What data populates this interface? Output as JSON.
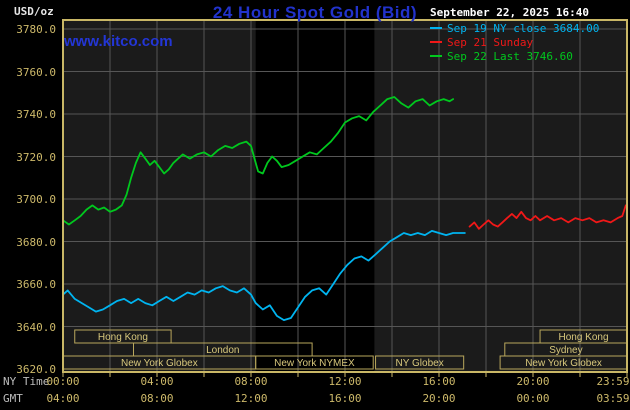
{
  "header": {
    "units_label": "USD/oz",
    "title": "24 Hour Spot Gold (Bid)",
    "datetime": "September 22, 2025 16:40",
    "watermark": "www.kitco.com"
  },
  "legend": [
    {
      "label": "Sep 19 NY close 3684.00",
      "color": "#00b4f0"
    },
    {
      "label": "Sep 21 Sunday",
      "color": "#f01818"
    },
    {
      "label": "Sep 22 Last 3746.60",
      "color": "#00c81e"
    }
  ],
  "colors": {
    "background": "#000000",
    "plot_bg": "#1b1b1b",
    "plot_band": "#000000",
    "grid": "#565656",
    "frame": "#c9b766",
    "session_border": "#b9a75c",
    "session_text": "#d8c87c",
    "axis_text": "#cdb96a",
    "axis_side_text": "#bdbdbd",
    "title_blue": "#2233cc",
    "watermark_blue": "#2336d6",
    "date_text": "#ffffff",
    "units_text": "#e6e6e6"
  },
  "chart_data": {
    "type": "line",
    "title": "24 Hour Spot Gold (Bid)",
    "ylabel": "USD/oz",
    "ylim": [
      3620,
      3780
    ],
    "ytick_step": 20,
    "y_ticks": [
      "3780.0",
      "3760.0",
      "3740.0",
      "3720.0",
      "3700.0",
      "3680.0",
      "3660.0",
      "3640.0",
      "3620.0"
    ],
    "x_range_hours": [
      0,
      24
    ],
    "grid_hours_step": 2,
    "dark_band_hours": [
      8.2,
      13.25
    ],
    "x_axis": {
      "ny_label": "NY Time",
      "gmt_label": "GMT",
      "ticks": [
        {
          "h": 0,
          "ny": "00:00",
          "gmt": "04:00"
        },
        {
          "h": 4,
          "ny": "04:00",
          "gmt": "08:00"
        },
        {
          "h": 8,
          "ny": "08:00",
          "gmt": "12:00"
        },
        {
          "h": 12,
          "ny": "12:00",
          "gmt": "16:00"
        },
        {
          "h": 16,
          "ny": "16:00",
          "gmt": "20:00"
        },
        {
          "h": 20,
          "ny": "20:00",
          "gmt": "00:00"
        },
        {
          "h": 24,
          "ny": "23:59",
          "gmt": "03:59"
        }
      ]
    },
    "series": [
      {
        "name": "Sep 19 NY close",
        "color": "#00b4f0",
        "last_value": 3684.0,
        "points": [
          [
            0,
            3655
          ],
          [
            0.2,
            3657
          ],
          [
            0.5,
            3653
          ],
          [
            0.8,
            3651
          ],
          [
            1.1,
            3649
          ],
          [
            1.4,
            3647
          ],
          [
            1.7,
            3648
          ],
          [
            2,
            3650
          ],
          [
            2.3,
            3652
          ],
          [
            2.6,
            3653
          ],
          [
            2.9,
            3651
          ],
          [
            3.2,
            3653
          ],
          [
            3.5,
            3651
          ],
          [
            3.8,
            3650
          ],
          [
            4.1,
            3652
          ],
          [
            4.4,
            3654
          ],
          [
            4.7,
            3652
          ],
          [
            5,
            3654
          ],
          [
            5.3,
            3656
          ],
          [
            5.6,
            3655
          ],
          [
            5.9,
            3657
          ],
          [
            6.2,
            3656
          ],
          [
            6.5,
            3658
          ],
          [
            6.8,
            3659
          ],
          [
            7.1,
            3657
          ],
          [
            7.4,
            3656
          ],
          [
            7.7,
            3658
          ],
          [
            8,
            3655
          ],
          [
            8.2,
            3651
          ],
          [
            8.5,
            3648
          ],
          [
            8.8,
            3650
          ],
          [
            9.1,
            3645
          ],
          [
            9.4,
            3643
          ],
          [
            9.7,
            3644
          ],
          [
            10,
            3649
          ],
          [
            10.3,
            3654
          ],
          [
            10.6,
            3657
          ],
          [
            10.9,
            3658
          ],
          [
            11.2,
            3655
          ],
          [
            11.5,
            3660
          ],
          [
            11.8,
            3665
          ],
          [
            12.1,
            3669
          ],
          [
            12.4,
            3672
          ],
          [
            12.7,
            3673
          ],
          [
            13,
            3671
          ],
          [
            13.3,
            3674
          ],
          [
            13.6,
            3677
          ],
          [
            13.9,
            3680
          ],
          [
            14.2,
            3682
          ],
          [
            14.5,
            3684
          ],
          [
            14.8,
            3683
          ],
          [
            15.1,
            3684
          ],
          [
            15.4,
            3683
          ],
          [
            15.7,
            3685
          ],
          [
            16,
            3684
          ],
          [
            16.3,
            3683
          ],
          [
            16.6,
            3684
          ],
          [
            16.9,
            3684
          ],
          [
            17.1,
            3684
          ]
        ]
      },
      {
        "name": "Sep 21 Sunday",
        "color": "#f01818",
        "last_value": 3697,
        "points": [
          [
            17.3,
            3687
          ],
          [
            17.5,
            3689
          ],
          [
            17.7,
            3686
          ],
          [
            17.9,
            3688
          ],
          [
            18.1,
            3690
          ],
          [
            18.3,
            3688
          ],
          [
            18.5,
            3687
          ],
          [
            18.7,
            3689
          ],
          [
            18.9,
            3691
          ],
          [
            19.1,
            3693
          ],
          [
            19.3,
            3691
          ],
          [
            19.5,
            3694
          ],
          [
            19.7,
            3691
          ],
          [
            19.9,
            3690
          ],
          [
            20.1,
            3692
          ],
          [
            20.3,
            3690
          ],
          [
            20.6,
            3692
          ],
          [
            20.9,
            3690
          ],
          [
            21.2,
            3691
          ],
          [
            21.5,
            3689
          ],
          [
            21.8,
            3691
          ],
          [
            22.1,
            3690
          ],
          [
            22.4,
            3691
          ],
          [
            22.7,
            3689
          ],
          [
            23,
            3690
          ],
          [
            23.3,
            3689
          ],
          [
            23.6,
            3691
          ],
          [
            23.8,
            3692
          ],
          [
            23.95,
            3697
          ]
        ]
      },
      {
        "name": "Sep 22 Last",
        "color": "#00c81e",
        "last_value": 3746.6,
        "points": [
          [
            0,
            3690
          ],
          [
            0.25,
            3688
          ],
          [
            0.5,
            3690
          ],
          [
            0.75,
            3692
          ],
          [
            1,
            3695
          ],
          [
            1.25,
            3697
          ],
          [
            1.5,
            3695
          ],
          [
            1.75,
            3696
          ],
          [
            2,
            3694
          ],
          [
            2.25,
            3695
          ],
          [
            2.5,
            3697
          ],
          [
            2.7,
            3702
          ],
          [
            2.9,
            3710
          ],
          [
            3.1,
            3717
          ],
          [
            3.3,
            3722
          ],
          [
            3.5,
            3719
          ],
          [
            3.7,
            3716
          ],
          [
            3.9,
            3718
          ],
          [
            4.1,
            3715
          ],
          [
            4.3,
            3712
          ],
          [
            4.5,
            3714
          ],
          [
            4.7,
            3717
          ],
          [
            4.9,
            3719
          ],
          [
            5.1,
            3721
          ],
          [
            5.4,
            3719
          ],
          [
            5.7,
            3721
          ],
          [
            6,
            3722
          ],
          [
            6.3,
            3720
          ],
          [
            6.6,
            3723
          ],
          [
            6.9,
            3725
          ],
          [
            7.2,
            3724
          ],
          [
            7.5,
            3726
          ],
          [
            7.8,
            3727
          ],
          [
            8,
            3725
          ],
          [
            8.15,
            3719
          ],
          [
            8.3,
            3713
          ],
          [
            8.5,
            3712
          ],
          [
            8.7,
            3717
          ],
          [
            8.9,
            3720
          ],
          [
            9.1,
            3718
          ],
          [
            9.3,
            3715
          ],
          [
            9.6,
            3716
          ],
          [
            9.9,
            3718
          ],
          [
            10.2,
            3720
          ],
          [
            10.5,
            3722
          ],
          [
            10.8,
            3721
          ],
          [
            11.1,
            3724
          ],
          [
            11.4,
            3727
          ],
          [
            11.7,
            3731
          ],
          [
            12,
            3736
          ],
          [
            12.3,
            3738
          ],
          [
            12.6,
            3739
          ],
          [
            12.9,
            3737
          ],
          [
            13.2,
            3741
          ],
          [
            13.5,
            3744
          ],
          [
            13.8,
            3747
          ],
          [
            14.1,
            3748
          ],
          [
            14.4,
            3745
          ],
          [
            14.7,
            3743
          ],
          [
            15,
            3746
          ],
          [
            15.3,
            3747
          ],
          [
            15.6,
            3744
          ],
          [
            15.9,
            3746
          ],
          [
            16.2,
            3747
          ],
          [
            16.45,
            3746
          ],
          [
            16.6,
            3747
          ]
        ]
      }
    ],
    "sessions": [
      {
        "row": 0,
        "start": 0.5,
        "end": 4.6,
        "label": "Hong Kong"
      },
      {
        "row": 0,
        "start": 20.3,
        "end": 24,
        "label": "Hong Kong"
      },
      {
        "row": 1,
        "start": 3.0,
        "end": 10.6,
        "label": "London"
      },
      {
        "row": 1,
        "start": 18.8,
        "end": 24,
        "label": "Sydney"
      },
      {
        "row": 2,
        "start": 0,
        "end": 8.2,
        "label": "New York Globex"
      },
      {
        "row": 2,
        "start": 8.2,
        "end": 13.2,
        "label": "New York NYMEX"
      },
      {
        "row": 2,
        "start": 13.3,
        "end": 17.05,
        "label": "NY Globex"
      },
      {
        "row": 2,
        "start": 18.6,
        "end": 24,
        "label": "New York Globex"
      }
    ]
  }
}
